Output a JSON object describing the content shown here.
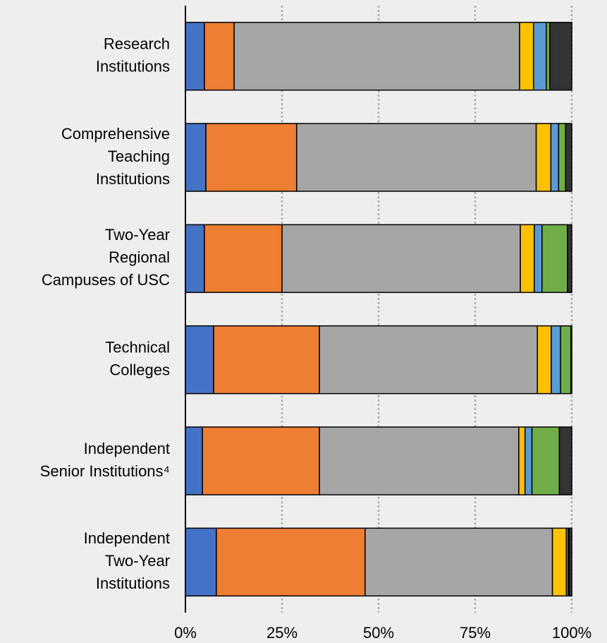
{
  "chart_data": {
    "type": "stacked-bar-horizontal",
    "categories": [
      [
        "Research",
        "Institutions"
      ],
      [
        "Comprehensive",
        "Teaching",
        "Institutions"
      ],
      [
        "Two-Year",
        "Regional",
        "Campuses of USC"
      ],
      [
        "Technical",
        "Colleges"
      ],
      [
        "Independent",
        "Senior Institutions⁴"
      ],
      [
        "Independent",
        "Two-Year",
        "Institutions"
      ]
    ],
    "series": [
      {
        "color": "#4472c4",
        "values": [
          4.9,
          5.3,
          4.9,
          7.3,
          4.4,
          8.0
        ]
      },
      {
        "color": "#ed7d31",
        "values": [
          7.7,
          23.5,
          20.1,
          27.4,
          30.3,
          38.5
        ]
      },
      {
        "color": "#a5a5a5",
        "values": [
          73.9,
          62.0,
          61.7,
          56.4,
          51.6,
          48.5
        ]
      },
      {
        "color": "#ffc000",
        "values": [
          3.6,
          3.8,
          3.6,
          3.6,
          1.6,
          3.6
        ]
      },
      {
        "color": "#5b9bd5",
        "values": [
          3.3,
          2.0,
          2.0,
          2.4,
          1.8,
          0.5
        ]
      },
      {
        "color": "#70ad47",
        "values": [
          0.9,
          1.8,
          6.6,
          2.7,
          7.1,
          0.2
        ]
      },
      {
        "color": "#333333",
        "values": [
          5.7,
          1.6,
          1.1,
          0.2,
          3.2,
          0.7
        ]
      }
    ],
    "xlim": [
      0,
      100
    ],
    "xticks": [
      {
        "value": 0,
        "label": "0%"
      },
      {
        "value": 25,
        "label": "25%"
      },
      {
        "value": 50,
        "label": "50%"
      },
      {
        "value": 75,
        "label": "75%"
      },
      {
        "value": 100,
        "label": "100%"
      }
    ],
    "grid": true
  }
}
